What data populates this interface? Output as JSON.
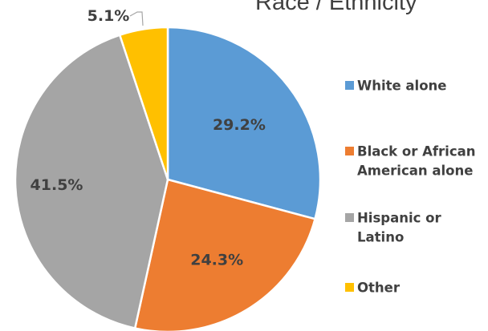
{
  "chart_data": {
    "type": "pie",
    "title": "Race / Ethnicity",
    "categories": [
      "White alone",
      "Black or African American alone",
      "Hispanic or Latino",
      "Other"
    ],
    "values": [
      29.2,
      24.3,
      41.5,
      5.1
    ],
    "labels": [
      "29.2%",
      "24.3%",
      "41.5%",
      "5.1%"
    ],
    "legend": [
      {
        "lines": [
          "White alone"
        ],
        "color": "#5b9bd5"
      },
      {
        "lines": [
          "Black or African",
          "American alone"
        ],
        "color": "#ed7d31"
      },
      {
        "lines": [
          "Hispanic or",
          "Latino"
        ],
        "color": "#a5a5a5"
      },
      {
        "lines": [
          "Other"
        ],
        "color": "#ffc000"
      }
    ],
    "colors": [
      "#5b9bd5",
      "#ed7d31",
      "#a5a5a5",
      "#ffc000"
    ],
    "legend_position": "right",
    "start_angle": "12 o'clock",
    "direction": "clockwise"
  }
}
